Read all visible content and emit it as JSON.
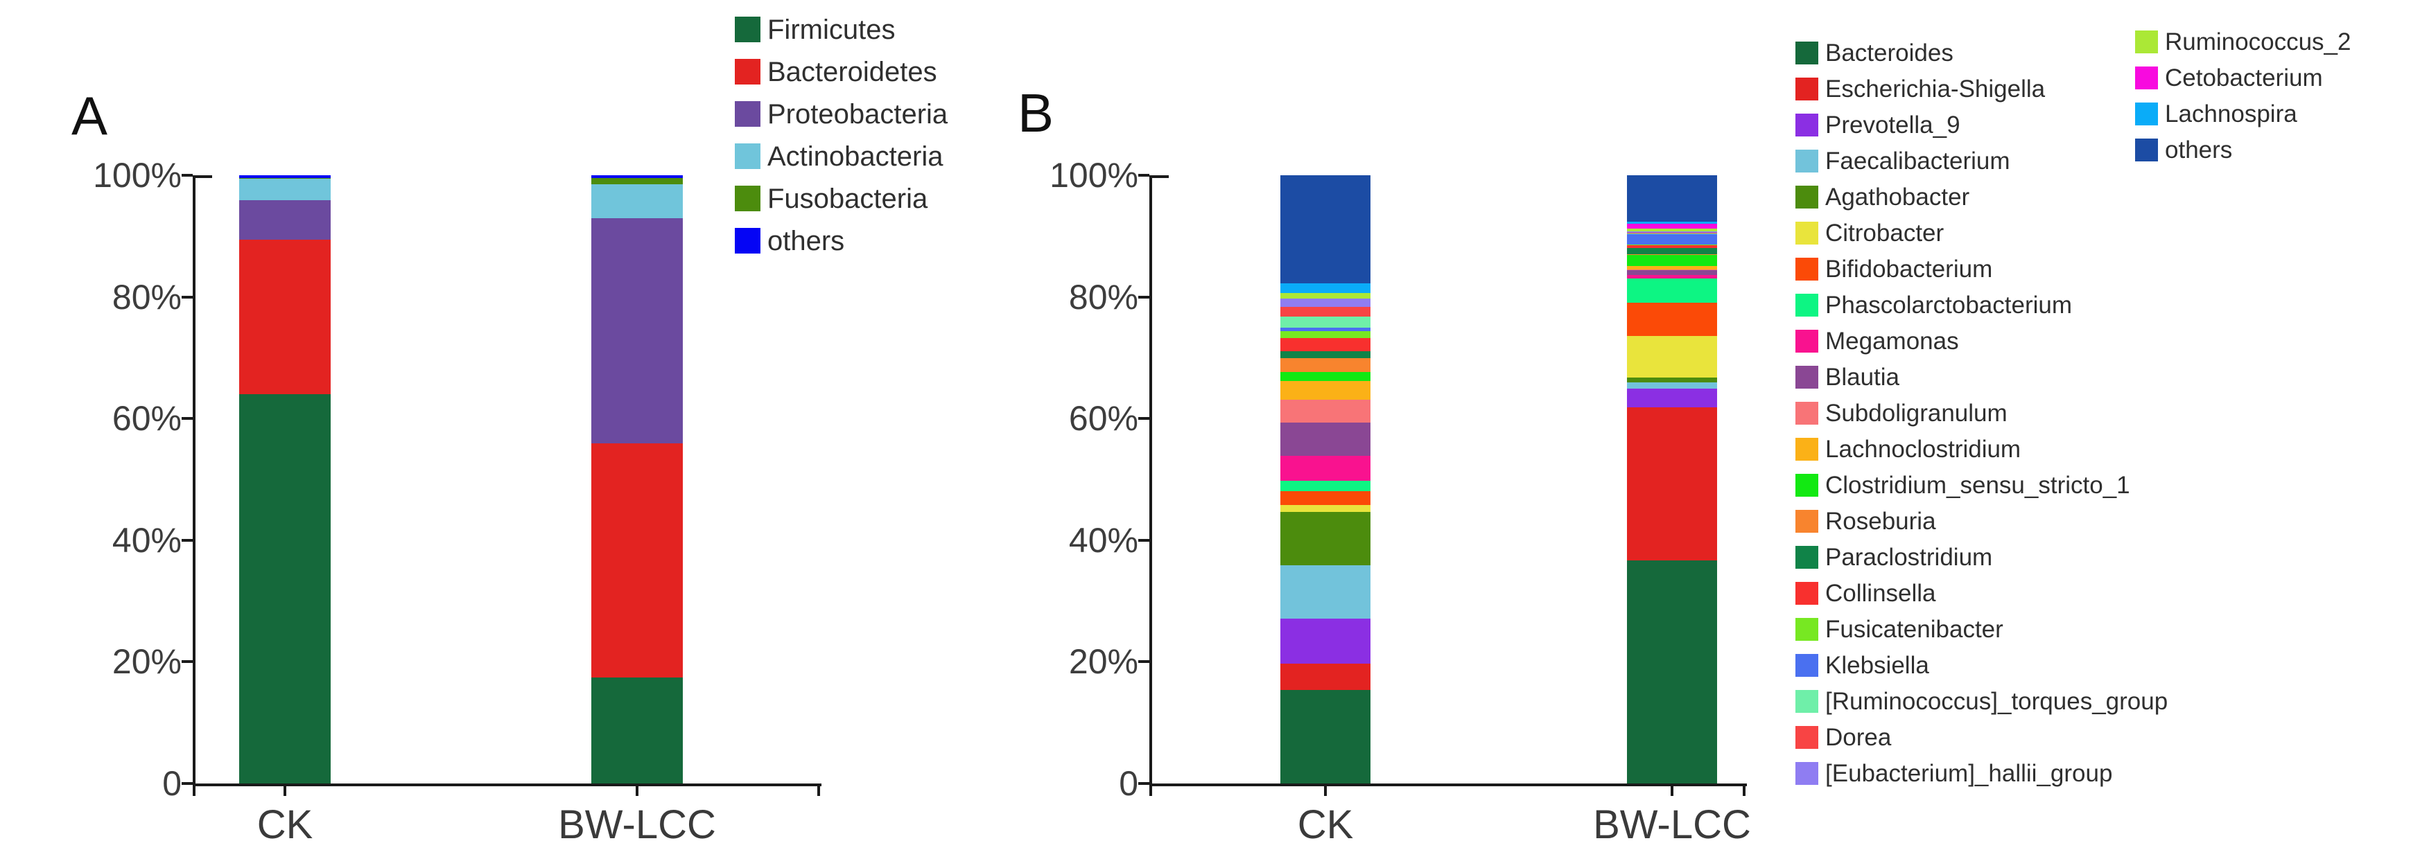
{
  "chart_data": [
    {
      "type": "bar",
      "subtype": "stacked-percent-bar",
      "panel_label": "A",
      "categories": [
        "CK",
        "BW-LCC"
      ],
      "xlabel": "",
      "ylabel": "",
      "ylim": [
        0,
        100
      ],
      "grid": false,
      "legend_position": "right",
      "y_axis": {
        "tick_labels": [
          "100%",
          "80%",
          "60%",
          "40%",
          "20%",
          "0"
        ],
        "tick_values": [
          100,
          80,
          60,
          40,
          20,
          0
        ]
      },
      "series": [
        {
          "name": "Firmicutes",
          "color": "#15693B",
          "values": [
            64.0,
            17.4
          ]
        },
        {
          "name": "Bacteroidetes",
          "color": "#E32321",
          "values": [
            25.4,
            38.5
          ]
        },
        {
          "name": "Proteobacteria",
          "color": "#6B4A9F",
          "values": [
            6.5,
            37.0
          ]
        },
        {
          "name": "Actinobacteria",
          "color": "#70C5DB",
          "values": [
            3.5,
            5.6
          ]
        },
        {
          "name": "Fusobacteria",
          "color": "#4C8C0D",
          "values": [
            0.1,
            1.1
          ]
        },
        {
          "name": "others",
          "color": "#0505F5",
          "values": [
            0.5,
            0.4
          ]
        }
      ]
    },
    {
      "type": "bar",
      "subtype": "stacked-percent-bar",
      "panel_label": "B",
      "categories": [
        "CK",
        "BW-LCC"
      ],
      "xlabel": "",
      "ylabel": "",
      "ylim": [
        0,
        100
      ],
      "grid": false,
      "legend_position": "right-two-columns",
      "y_axis": {
        "tick_labels": [
          "100%",
          "80%",
          "60%",
          "40%",
          "20%",
          "0"
        ],
        "tick_values": [
          100,
          80,
          60,
          40,
          20,
          0
        ]
      },
      "series": [
        {
          "name": "Bacteroides",
          "color": "#15693B",
          "values": [
            15.4,
            36.7
          ]
        },
        {
          "name": "Escherichia-Shigella",
          "color": "#E32321",
          "values": [
            4.3,
            25.1
          ]
        },
        {
          "name": "Prevotella_9",
          "color": "#8B2FE3",
          "values": [
            7.4,
            3.1
          ]
        },
        {
          "name": "Faecalibacterium",
          "color": "#72C3DB",
          "values": [
            8.8,
            1.1
          ]
        },
        {
          "name": "Agathobacter",
          "color": "#4C8C0D",
          "values": [
            8.8,
            0.8
          ]
        },
        {
          "name": "Citrobacter",
          "color": "#E9E43C",
          "values": [
            1.1,
            6.8
          ]
        },
        {
          "name": "Bifidobacterium",
          "color": "#FB4A07",
          "values": [
            2.3,
            5.4
          ]
        },
        {
          "name": "Phascolarctobacterium",
          "color": "#0DF583",
          "values": [
            1.7,
            4.0
          ]
        },
        {
          "name": "Megamonas",
          "color": "#F9128F",
          "values": [
            4.1,
            0.6
          ]
        },
        {
          "name": "Blautia",
          "color": "#8A4794",
          "values": [
            5.4,
            0.8
          ]
        },
        {
          "name": "Subdoligranulum",
          "color": "#F87477",
          "values": [
            3.8,
            0.1
          ]
        },
        {
          "name": "Lachnoclostridium",
          "color": "#FBB117",
          "values": [
            3.1,
            0.6
          ]
        },
        {
          "name": "Clostridium_sensu_stricto_1",
          "color": "#12E912",
          "values": [
            1.5,
            1.8
          ]
        },
        {
          "name": "Roseburia",
          "color": "#F8842E",
          "values": [
            2.3,
            0.1
          ]
        },
        {
          "name": "Paraclostridium",
          "color": "#108348",
          "values": [
            1.1,
            1.0
          ]
        },
        {
          "name": "Collinsella",
          "color": "#F8302E",
          "values": [
            2.2,
            0.5
          ]
        },
        {
          "name": "Fusicatenibacter",
          "color": "#77E822",
          "values": [
            1.1,
            0.1
          ]
        },
        {
          "name": "Klebsiella",
          "color": "#4A70F0",
          "values": [
            0.6,
            1.7
          ]
        },
        {
          "name": "[Ruminococcus]_torques_group",
          "color": "#6FEFA9",
          "values": [
            1.8,
            0.1
          ]
        },
        {
          "name": "Dorea",
          "color": "#F84444",
          "values": [
            1.6,
            0.2
          ]
        },
        {
          "name": "[Eubacterium]_hallii_group",
          "color": "#8F7DF2",
          "values": [
            1.3,
            0.2
          ]
        },
        {
          "name": "Ruminococcus_2",
          "color": "#ABE836",
          "values": [
            0.9,
            0.4
          ]
        },
        {
          "name": "Cetobacterium",
          "color": "#F80ADF",
          "values": [
            0.1,
            0.9
          ]
        },
        {
          "name": "Lachnospira",
          "color": "#0AACF8",
          "values": [
            1.6,
            0.3
          ]
        },
        {
          "name": "others",
          "color": "#1C4CA4",
          "values": [
            17.7,
            7.6
          ]
        }
      ]
    }
  ]
}
